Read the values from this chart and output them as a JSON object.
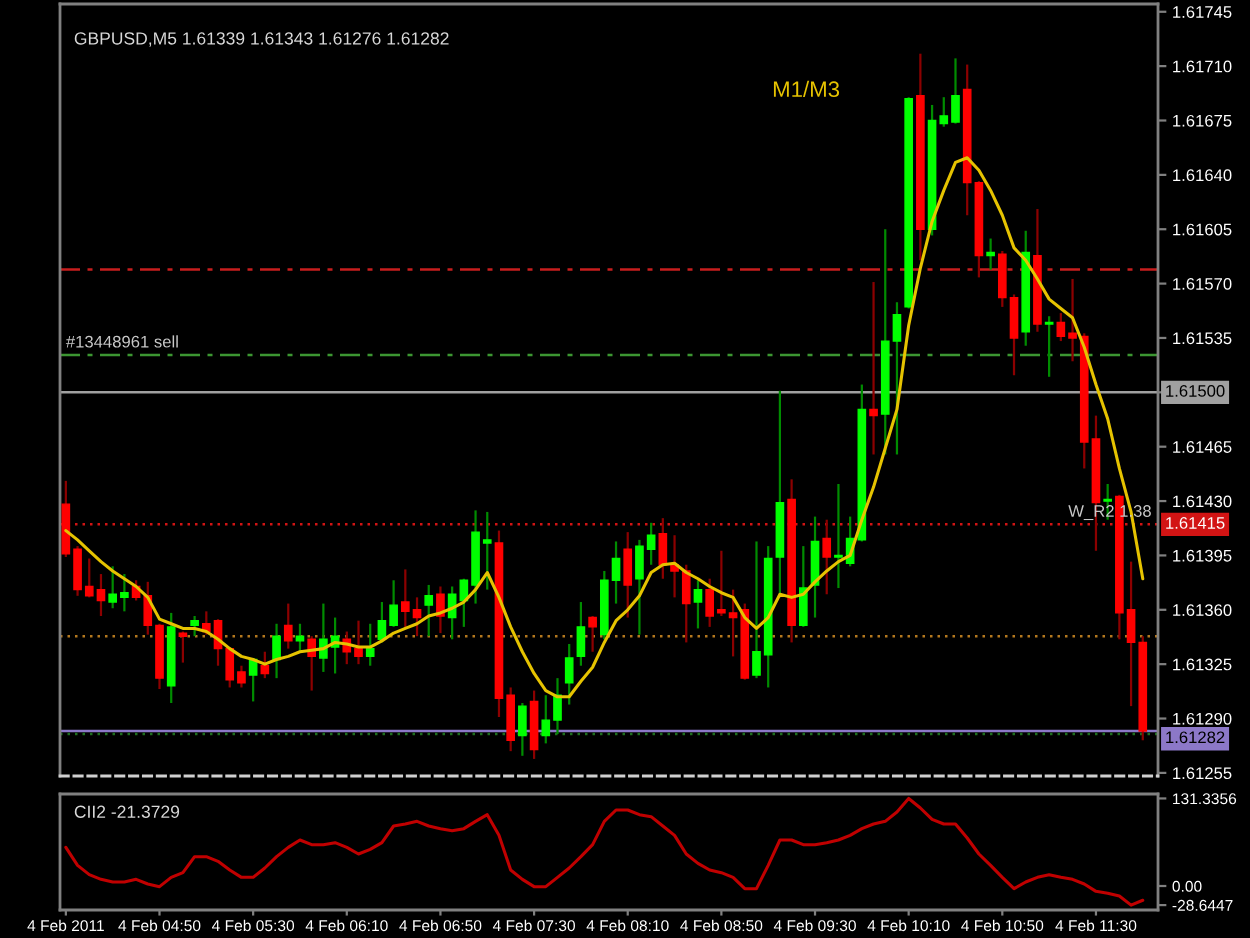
{
  "chart_data": [
    {
      "type": "candlestick",
      "title": "GBPUSD,M5 1.61339 1.61343 1.61276 1.61282",
      "categories": [
        "4 Feb 2011",
        null,
        null,
        null,
        null,
        null,
        null,
        null,
        "4 Feb 04:50",
        null,
        null,
        null,
        null,
        null,
        null,
        null,
        "4 Feb 05:30",
        null,
        null,
        null,
        null,
        null,
        null,
        null,
        "4 Feb 06:10",
        null,
        null,
        null,
        null,
        null,
        null,
        null,
        "4 Feb 06:50",
        null,
        null,
        null,
        null,
        null,
        null,
        null,
        "4 Feb 07:30",
        null,
        null,
        null,
        null,
        null,
        null,
        null,
        "4 Feb 08:10",
        null,
        null,
        null,
        null,
        null,
        null,
        null,
        "4 Feb 08:50",
        null,
        null,
        null,
        null,
        null,
        null,
        null,
        "4 Feb 09:30",
        null,
        null,
        null,
        null,
        null,
        null,
        null,
        "4 Feb 10:10",
        null,
        null,
        null,
        null,
        null,
        null,
        null,
        "4 Feb 10:50",
        null,
        null,
        null,
        null,
        null,
        null,
        null,
        "4 Feb 11:30",
        null,
        null,
        null,
        null
      ],
      "ohlc": [
        [
          1.61428,
          1.61443,
          1.61394,
          1.61396
        ],
        [
          1.61399,
          1.61401,
          1.61369,
          1.61373
        ],
        [
          1.61375,
          1.61393,
          1.61368,
          1.61369
        ],
        [
          1.61373,
          1.61383,
          1.61356,
          1.61366
        ],
        [
          1.61365,
          1.61388,
          1.61361,
          1.6137
        ],
        [
          1.61368,
          1.61383,
          1.61359,
          1.61371
        ],
        [
          1.61375,
          1.61379,
          1.61366,
          1.61368
        ],
        [
          1.61369,
          1.61378,
          1.61344,
          1.6135
        ],
        [
          1.6135,
          1.61351,
          1.61309,
          1.61316
        ],
        [
          1.61311,
          1.61358,
          1.613,
          1.61349
        ],
        [
          1.61345,
          1.61346,
          1.61326,
          1.61343
        ],
        [
          1.6135,
          1.61356,
          1.61343,
          1.61353
        ],
        [
          1.61351,
          1.61359,
          1.61344,
          1.61346
        ],
        [
          1.61353,
          1.61354,
          1.61324,
          1.61335
        ],
        [
          1.61335,
          1.61336,
          1.6131,
          1.61315
        ],
        [
          1.6132,
          1.61324,
          1.6131,
          1.61313
        ],
        [
          1.61318,
          1.61329,
          1.61301,
          1.61328
        ],
        [
          1.61324,
          1.61333,
          1.61316,
          1.61319
        ],
        [
          1.61328,
          1.61351,
          1.61316,
          1.61343
        ],
        [
          1.6135,
          1.61364,
          1.61335,
          1.6134
        ],
        [
          1.6134,
          1.61351,
          1.61333,
          1.61343
        ],
        [
          1.61341,
          1.61343,
          1.61308,
          1.6133
        ],
        [
          1.61329,
          1.61364,
          1.6132,
          1.61341
        ],
        [
          1.61336,
          1.61355,
          1.61319,
          1.61343
        ],
        [
          1.61341,
          1.61346,
          1.61325,
          1.61333
        ],
        [
          1.61335,
          1.61353,
          1.61325,
          1.6133
        ],
        [
          1.6133,
          1.61351,
          1.61324,
          1.61335
        ],
        [
          1.61341,
          1.61365,
          1.61339,
          1.61353
        ],
        [
          1.6135,
          1.61379,
          1.61349,
          1.61363
        ],
        [
          1.61365,
          1.61386,
          1.61348,
          1.61359
        ],
        [
          1.6136,
          1.61368,
          1.61343,
          1.61355
        ],
        [
          1.61363,
          1.61376,
          1.61343,
          1.61369
        ],
        [
          1.6137,
          1.61375,
          1.61345,
          1.61356
        ],
        [
          1.61355,
          1.61375,
          1.61341,
          1.6137
        ],
        [
          1.61366,
          1.6138,
          1.61349,
          1.61379
        ],
        [
          1.61376,
          1.61424,
          1.61364,
          1.6141
        ],
        [
          1.61403,
          1.61423,
          1.61373,
          1.61405
        ],
        [
          1.61403,
          1.61411,
          1.61291,
          1.61303
        ],
        [
          1.61305,
          1.6131,
          1.61269,
          1.61276
        ],
        [
          1.61279,
          1.613,
          1.61266,
          1.61298
        ],
        [
          1.61301,
          1.61308,
          1.61264,
          1.6127
        ],
        [
          1.61279,
          1.61305,
          1.61274,
          1.61289
        ],
        [
          1.61289,
          1.61316,
          1.6128,
          1.61305
        ],
        [
          1.61313,
          1.61338,
          1.61299,
          1.61329
        ],
        [
          1.6133,
          1.61365,
          1.61324,
          1.61349
        ],
        [
          1.61355,
          1.61356,
          1.61333,
          1.61349
        ],
        [
          1.61344,
          1.61385,
          1.61341,
          1.61379
        ],
        [
          1.61379,
          1.61404,
          1.61364,
          1.61393
        ],
        [
          1.61399,
          1.6141,
          1.61355,
          1.61376
        ],
        [
          1.6138,
          1.61405,
          1.61344,
          1.61401
        ],
        [
          1.61399,
          1.61416,
          1.61389,
          1.61408
        ],
        [
          1.61409,
          1.61419,
          1.6138,
          1.61389
        ],
        [
          1.61389,
          1.61408,
          1.61368,
          1.61385
        ],
        [
          1.61385,
          1.61389,
          1.61339,
          1.61364
        ],
        [
          1.61365,
          1.61379,
          1.61348,
          1.61373
        ],
        [
          1.61373,
          1.6138,
          1.61349,
          1.61356
        ],
        [
          1.6136,
          1.61398,
          1.61356,
          1.61358
        ],
        [
          1.61358,
          1.61373,
          1.6133,
          1.61355
        ],
        [
          1.6136,
          1.61364,
          1.61315,
          1.61316
        ],
        [
          1.61318,
          1.61404,
          1.61316,
          1.61333
        ],
        [
          1.61331,
          1.61401,
          1.6131,
          1.61393
        ],
        [
          1.61394,
          1.61501,
          1.61368,
          1.61429
        ],
        [
          1.61431,
          1.61444,
          1.61339,
          1.6135
        ],
        [
          1.6135,
          1.61401,
          1.61349,
          1.61374
        ],
        [
          1.61376,
          1.6142,
          1.61355,
          1.61404
        ],
        [
          1.61406,
          1.61418,
          1.6137,
          1.61394
        ],
        [
          1.61394,
          1.61441,
          1.61374,
          1.61395
        ],
        [
          1.6139,
          1.6142,
          1.61388,
          1.61406
        ],
        [
          1.61405,
          1.61505,
          1.61404,
          1.61489
        ],
        [
          1.61489,
          1.61571,
          1.6146,
          1.61485
        ],
        [
          1.61486,
          1.61605,
          1.6146,
          1.61533
        ],
        [
          1.61533,
          1.61558,
          1.6146,
          1.6155
        ],
        [
          1.61555,
          1.6169,
          1.61554,
          1.61689
        ],
        [
          1.61691,
          1.61718,
          1.61585,
          1.61605
        ],
        [
          1.61605,
          1.61685,
          1.61601,
          1.61675
        ],
        [
          1.61673,
          1.6169,
          1.61671,
          1.61678
        ],
        [
          1.61674,
          1.61715,
          1.61673,
          1.61691
        ],
        [
          1.61695,
          1.61711,
          1.61614,
          1.61635
        ],
        [
          1.61635,
          1.61636,
          1.61574,
          1.61588
        ],
        [
          1.61588,
          1.61599,
          1.61579,
          1.6159
        ],
        [
          1.61589,
          1.61591,
          1.61555,
          1.61561
        ],
        [
          1.61561,
          1.61563,
          1.61511,
          1.61535
        ],
        [
          1.61539,
          1.61604,
          1.6153,
          1.6159
        ],
        [
          1.61588,
          1.61618,
          1.61539,
          1.61544
        ],
        [
          1.61544,
          1.61549,
          1.6151,
          1.61545
        ],
        [
          1.61545,
          1.61551,
          1.61533,
          1.61536
        ],
        [
          1.61538,
          1.61573,
          1.6152,
          1.61535
        ],
        [
          1.61536,
          1.61538,
          1.61451,
          1.61468
        ],
        [
          1.6147,
          1.61485,
          1.61398,
          1.61429
        ],
        [
          1.6143,
          1.61441,
          1.61418,
          1.61431
        ],
        [
          1.61433,
          1.61434,
          1.61341,
          1.61358
        ],
        [
          1.6136,
          1.61391,
          1.61298,
          1.61339
        ],
        [
          1.61339,
          1.61343,
          1.61276,
          1.61282
        ]
      ],
      "colors": [
        "#ff0000",
        "#ff0000",
        "#ff0000",
        "#ff0000",
        "#00ff00",
        "#00ff00",
        "#ff0000",
        "#ff0000",
        "#ff0000",
        "#00ff00",
        "#ff0000",
        "#00ff00",
        "#ff0000",
        "#ff0000",
        "#ff0000",
        "#ff0000",
        "#00ff00",
        "#ff0000",
        "#00ff00",
        "#ff0000",
        "#00ff00",
        "#ff0000",
        "#00ff00",
        "#00ff00",
        "#ff0000",
        "#ff0000",
        "#00ff00",
        "#00ff00",
        "#00ff00",
        "#ff0000",
        "#ff0000",
        "#00ff00",
        "#ff0000",
        "#00ff00",
        "#00ff00",
        "#00ff00",
        "#00ff00",
        "#ff0000",
        "#ff0000",
        "#00ff00",
        "#ff0000",
        "#00ff00",
        "#00ff00",
        "#00ff00",
        "#00ff00",
        "#ff0000",
        "#00ff00",
        "#00ff00",
        "#ff0000",
        "#00ff00",
        "#00ff00",
        "#ff0000",
        "#ff0000",
        "#ff0000",
        "#00ff00",
        "#ff0000",
        "#ff0000",
        "#ff0000",
        "#ff0000",
        "#00ff00",
        "#00ff00",
        "#00ff00",
        "#ff0000",
        "#00ff00",
        "#00ff00",
        "#ff0000",
        "#00ff00",
        "#00ff00",
        "#00ff00",
        "#ff0000",
        "#00ff00",
        "#00ff00",
        "#00ff00",
        "#ff0000",
        "#00ff00",
        "#00ff00",
        "#00ff00",
        "#ff0000",
        "#ff0000",
        "#00ff00",
        "#ff0000",
        "#ff0000",
        "#00ff00",
        "#ff0000",
        "#00ff00",
        "#ff0000",
        "#ff0000",
        "#ff0000",
        "#ff0000",
        "#00ff00",
        "#ff0000",
        "#ff0000",
        "#ff0000"
      ],
      "series": [
        {
          "type": "line",
          "name": "M1/M3",
          "color": "#e6c300",
          "values": [
            1.61411,
            1.61405,
            1.61398,
            1.61391,
            1.61385,
            1.6138,
            1.61375,
            1.61368,
            1.61354,
            1.61351,
            1.61348,
            1.61348,
            1.61346,
            1.61341,
            1.61335,
            1.6133,
            1.61328,
            1.61325,
            1.61328,
            1.6133,
            1.61333,
            1.61334,
            1.61335,
            1.61339,
            1.61338,
            1.61336,
            1.61336,
            1.6134,
            1.61345,
            1.61348,
            1.61351,
            1.61356,
            1.61358,
            1.61361,
            1.61365,
            1.61373,
            1.61384,
            1.61368,
            1.61349,
            1.61333,
            1.61319,
            1.61308,
            1.61304,
            1.61304,
            1.61314,
            1.61323,
            1.61339,
            1.61353,
            1.6136,
            1.61369,
            1.61384,
            1.61389,
            1.6139,
            1.61384,
            1.6138,
            1.61375,
            1.61371,
            1.61368,
            1.61355,
            1.61348,
            1.61355,
            1.6137,
            1.61368,
            1.6137,
            1.61378,
            1.61385,
            1.61391,
            1.61395,
            1.61418,
            1.61439,
            1.61464,
            1.61489,
            1.61543,
            1.6158,
            1.6161,
            1.6163,
            1.61648,
            1.61651,
            1.61643,
            1.6163,
            1.61614,
            1.61593,
            1.61585,
            1.61573,
            1.6156,
            1.61554,
            1.61548,
            1.61529,
            1.61505,
            1.61483,
            1.61451,
            1.61423,
            1.6138
          ]
        }
      ],
      "ylim": [
        1.61253,
        1.6175
      ],
      "yticks": [
        1.61745,
        {
          "value": 1.6171,
          "label": "1.61710"
        },
        1.61675,
        {
          "value": 1.6164,
          "label": "1.61640"
        },
        1.61605,
        {
          "value": 1.6157,
          "label": "1.61570"
        },
        1.61535,
        {
          "value": 1.615,
          "label": null
        },
        1.61465,
        {
          "value": 1.6143,
          "label": "1.61430"
        },
        1.61395,
        {
          "value": 1.6136,
          "label": "1.61360"
        },
        1.61325,
        {
          "value": 1.6129,
          "label": "1.61290"
        },
        1.61255
      ],
      "tick_labels": "y",
      "ref_lines": [
        {
          "axis": "y",
          "value": 1.61579,
          "color": "#c81e1e",
          "line_style": "dashdot"
        },
        {
          "axis": "y",
          "value": 1.61524,
          "color": "#3c9632",
          "line_style": "dashdot"
        },
        {
          "axis": "y",
          "value": 1.615,
          "label": "1.61500",
          "color": "#a0a0a0",
          "line_style": "solid"
        },
        {
          "axis": "y",
          "value": 1.61415,
          "label": "1.61415",
          "color": "#d21414",
          "line_style": "dotted"
        },
        {
          "axis": "y",
          "value": 1.61343,
          "color": "#b4781e",
          "line_style": "dotted"
        },
        {
          "axis": "y",
          "value": 1.61282,
          "label": "1.61282",
          "color": "#8c78c8",
          "line_style": "solid"
        },
        {
          "axis": "y",
          "value": 1.6128,
          "color": "#1e6e1e",
          "line_style": "dotted"
        }
      ],
      "annotations": [
        {
          "text": "#13448961 sell",
          "x": "4 Feb 2011",
          "y": 1.61524
        },
        {
          "text": "W_R2 1.38",
          "x": "4 Feb 11:30",
          "y": 1.61415
        }
      ]
    },
    {
      "type": "line",
      "title": "CII2 -21.3729",
      "categories": [
        "4 Feb 2011",
        null,
        null,
        null,
        null,
        null,
        null,
        null,
        "4 Feb 04:50",
        null,
        null,
        null,
        null,
        null,
        null,
        null,
        "4 Feb 05:30",
        null,
        null,
        null,
        null,
        null,
        null,
        null,
        "4 Feb 06:10",
        null,
        null,
        null,
        null,
        null,
        null,
        null,
        "4 Feb 06:50",
        null,
        null,
        null,
        null,
        null,
        null,
        null,
        "4 Feb 07:30",
        null,
        null,
        null,
        null,
        null,
        null,
        null,
        "4 Feb 08:10",
        null,
        null,
        null,
        null,
        null,
        null,
        null,
        "4 Feb 08:50",
        null,
        null,
        null,
        null,
        null,
        null,
        null,
        "4 Feb 09:30",
        null,
        null,
        null,
        null,
        null,
        null,
        null,
        "4 Feb 10:10",
        null,
        null,
        null,
        null,
        null,
        null,
        null,
        "4 Feb 10:50",
        null,
        null,
        null,
        null,
        null,
        null,
        null,
        "4 Feb 11:30",
        null,
        null,
        null,
        null
      ],
      "color": "#c00000",
      "values": [
        58,
        31,
        17,
        10,
        6,
        6,
        10,
        3,
        -1,
        13,
        20,
        44,
        44,
        37,
        24,
        13,
        13,
        27,
        44,
        58,
        69,
        62,
        62,
        65,
        58,
        48,
        55,
        65,
        90,
        93,
        97,
        90,
        86,
        83,
        86,
        97,
        107,
        76,
        24,
        10,
        -1,
        -1,
        13,
        27,
        44,
        62,
        97,
        114,
        114,
        107,
        104,
        90,
        76,
        48,
        34,
        24,
        20,
        13,
        -4,
        -4,
        31,
        69,
        69,
        62,
        62,
        65,
        69,
        76,
        86,
        93,
        97,
        111,
        131.3356,
        117,
        100,
        93,
        93,
        72,
        48,
        31,
        13,
        -4,
        6,
        13,
        17,
        13,
        10,
        3,
        -8,
        -11,
        -15,
        -28.6447,
        -21.3729
      ],
      "ylim": [
        -36,
        138
      ],
      "yticks": [
        131.3356,
        {
          "value": 0,
          "label": "0.00"
        },
        -28.6447
      ]
    }
  ]
}
